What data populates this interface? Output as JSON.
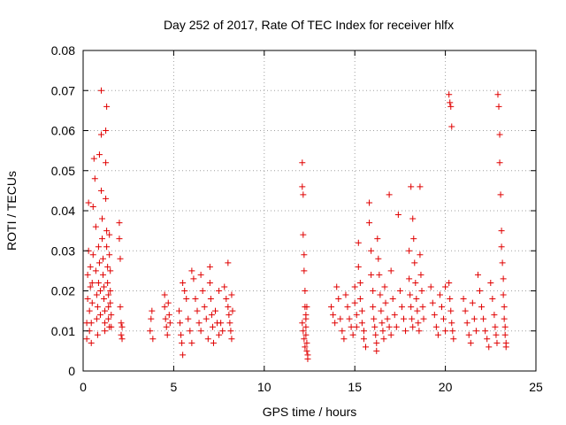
{
  "chart_data": {
    "type": "scatter",
    "title": "Day 252 of 2017, Rate Of TEC Index for receiver hlfx",
    "xlabel": "GPS time / hours",
    "ylabel": "ROTI / TECUs",
    "xlim": [
      0,
      25
    ],
    "ylim": [
      0,
      0.08
    ],
    "xticks": [
      0,
      5,
      10,
      15,
      20,
      25
    ],
    "yticks": [
      0,
      0.01,
      0.02,
      0.03,
      0.04,
      0.05,
      0.06,
      0.07,
      0.08
    ],
    "xtick_labels": [
      "0",
      "5",
      "10",
      "15",
      "20",
      "25"
    ],
    "ytick_labels": [
      "0",
      "0.01",
      "0.02",
      "0.03",
      "0.04",
      "0.05",
      "0.06",
      "0.07",
      "0.08"
    ],
    "grid": true,
    "marker": "plus",
    "color": "#e00000",
    "points": [
      [
        0.2,
        0.008
      ],
      [
        0.2,
        0.012
      ],
      [
        0.25,
        0.018
      ],
      [
        0.25,
        0.024
      ],
      [
        0.3,
        0.03
      ],
      [
        0.3,
        0.042
      ],
      [
        0.35,
        0.01
      ],
      [
        0.35,
        0.015
      ],
      [
        0.4,
        0.021
      ],
      [
        0.4,
        0.026
      ],
      [
        0.45,
        0.007
      ],
      [
        0.45,
        0.012
      ],
      [
        0.5,
        0.017
      ],
      [
        0.5,
        0.022
      ],
      [
        0.55,
        0.041
      ],
      [
        0.55,
        0.029
      ],
      [
        0.6,
        0.053
      ],
      [
        0.65,
        0.048
      ],
      [
        0.7,
        0.036
      ],
      [
        0.7,
        0.025
      ],
      [
        0.75,
        0.019
      ],
      [
        0.75,
        0.013
      ],
      [
        0.8,
        0.009
      ],
      [
        0.8,
        0.016
      ],
      [
        0.85,
        0.022
      ],
      [
        0.85,
        0.031
      ],
      [
        0.9,
        0.054
      ],
      [
        0.9,
        0.027
      ],
      [
        0.95,
        0.014
      ],
      [
        0.95,
        0.02
      ],
      [
        1.0,
        0.07
      ],
      [
        1.0,
        0.059
      ],
      [
        1.0,
        0.045
      ],
      [
        1.05,
        0.038
      ],
      [
        1.05,
        0.033
      ],
      [
        1.1,
        0.028
      ],
      [
        1.1,
        0.024
      ],
      [
        1.15,
        0.021
      ],
      [
        1.15,
        0.018
      ],
      [
        1.2,
        0.015
      ],
      [
        1.2,
        0.012
      ],
      [
        1.2,
        0.01
      ],
      [
        1.25,
        0.06
      ],
      [
        1.25,
        0.052
      ],
      [
        1.25,
        0.043
      ],
      [
        1.3,
        0.066
      ],
      [
        1.3,
        0.035
      ],
      [
        1.3,
        0.031
      ],
      [
        1.35,
        0.026
      ],
      [
        1.35,
        0.022
      ],
      [
        1.4,
        0.019
      ],
      [
        1.4,
        0.016
      ],
      [
        1.4,
        0.013
      ],
      [
        1.45,
        0.011
      ],
      [
        1.45,
        0.029
      ],
      [
        1.45,
        0.034
      ],
      [
        1.5,
        0.025
      ],
      [
        1.5,
        0.02
      ],
      [
        1.5,
        0.017
      ],
      [
        1.55,
        0.014
      ],
      [
        1.55,
        0.011
      ],
      [
        2.0,
        0.037
      ],
      [
        2.0,
        0.033
      ],
      [
        2.05,
        0.028
      ],
      [
        2.05,
        0.016
      ],
      [
        2.1,
        0.012
      ],
      [
        2.1,
        0.009
      ],
      [
        2.15,
        0.008
      ],
      [
        2.15,
        0.011
      ],
      [
        3.7,
        0.01
      ],
      [
        3.75,
        0.013
      ],
      [
        3.8,
        0.015
      ],
      [
        3.85,
        0.008
      ],
      [
        4.5,
        0.019
      ],
      [
        4.5,
        0.016
      ],
      [
        4.55,
        0.013
      ],
      [
        4.6,
        0.011
      ],
      [
        4.65,
        0.009
      ],
      [
        4.7,
        0.017
      ],
      [
        4.75,
        0.014
      ],
      [
        4.8,
        0.012
      ],
      [
        5.3,
        0.015
      ],
      [
        5.35,
        0.012
      ],
      [
        5.4,
        0.009
      ],
      [
        5.45,
        0.007
      ],
      [
        5.5,
        0.004
      ],
      [
        5.5,
        0.022
      ],
      [
        5.6,
        0.02
      ],
      [
        5.7,
        0.018
      ],
      [
        5.8,
        0.013
      ],
      [
        5.9,
        0.01
      ],
      [
        6.0,
        0.025
      ],
      [
        6.0,
        0.007
      ],
      [
        6.1,
        0.023
      ],
      [
        6.2,
        0.018
      ],
      [
        6.3,
        0.015
      ],
      [
        6.4,
        0.012
      ],
      [
        6.5,
        0.01
      ],
      [
        6.5,
        0.024
      ],
      [
        6.6,
        0.02
      ],
      [
        6.7,
        0.016
      ],
      [
        6.8,
        0.013
      ],
      [
        6.9,
        0.008
      ],
      [
        7.0,
        0.026
      ],
      [
        7.0,
        0.022
      ],
      [
        7.05,
        0.018
      ],
      [
        7.1,
        0.014
      ],
      [
        7.15,
        0.011
      ],
      [
        7.2,
        0.007
      ],
      [
        7.3,
        0.015
      ],
      [
        7.4,
        0.012
      ],
      [
        7.5,
        0.02
      ],
      [
        7.5,
        0.009
      ],
      [
        7.6,
        0.012
      ],
      [
        7.7,
        0.01
      ],
      [
        7.8,
        0.021
      ],
      [
        7.9,
        0.018
      ],
      [
        8.0,
        0.027
      ],
      [
        8.0,
        0.016
      ],
      [
        8.05,
        0.014
      ],
      [
        8.1,
        0.012
      ],
      [
        8.15,
        0.01
      ],
      [
        8.2,
        0.008
      ],
      [
        8.2,
        0.019
      ],
      [
        8.25,
        0.015
      ],
      [
        12.1,
        0.052
      ],
      [
        12.1,
        0.046
      ],
      [
        12.15,
        0.044
      ],
      [
        12.15,
        0.034
      ],
      [
        12.2,
        0.029
      ],
      [
        12.2,
        0.025
      ],
      [
        12.25,
        0.02
      ],
      [
        12.25,
        0.016
      ],
      [
        12.3,
        0.013
      ],
      [
        12.3,
        0.011
      ],
      [
        12.3,
        0.009
      ],
      [
        12.35,
        0.007
      ],
      [
        12.35,
        0.005
      ],
      [
        12.4,
        0.004
      ],
      [
        12.4,
        0.003
      ],
      [
        12.1,
        0.012
      ],
      [
        12.15,
        0.01
      ],
      [
        12.2,
        0.008
      ],
      [
        12.25,
        0.006
      ],
      [
        12.3,
        0.014
      ],
      [
        12.35,
        0.016
      ],
      [
        13.7,
        0.016
      ],
      [
        13.8,
        0.014
      ],
      [
        13.9,
        0.012
      ],
      [
        14.0,
        0.021
      ],
      [
        14.1,
        0.018
      ],
      [
        14.2,
        0.013
      ],
      [
        14.3,
        0.01
      ],
      [
        14.4,
        0.008
      ],
      [
        14.5,
        0.019
      ],
      [
        14.6,
        0.016
      ],
      [
        14.7,
        0.013
      ],
      [
        14.8,
        0.011
      ],
      [
        14.9,
        0.009
      ],
      [
        15.0,
        0.021
      ],
      [
        15.0,
        0.017
      ],
      [
        15.1,
        0.014
      ],
      [
        15.1,
        0.011
      ],
      [
        15.2,
        0.026
      ],
      [
        15.2,
        0.032
      ],
      [
        15.3,
        0.022
      ],
      [
        15.3,
        0.018
      ],
      [
        15.4,
        0.015
      ],
      [
        15.4,
        0.012
      ],
      [
        15.5,
        0.01
      ],
      [
        15.5,
        0.008
      ],
      [
        15.6,
        0.006
      ],
      [
        15.8,
        0.042
      ],
      [
        15.8,
        0.037
      ],
      [
        15.9,
        0.03
      ],
      [
        15.9,
        0.024
      ],
      [
        16.0,
        0.02
      ],
      [
        16.0,
        0.016
      ],
      [
        16.05,
        0.013
      ],
      [
        16.1,
        0.011
      ],
      [
        16.15,
        0.009
      ],
      [
        16.2,
        0.007
      ],
      [
        16.2,
        0.005
      ],
      [
        16.25,
        0.033
      ],
      [
        16.3,
        0.028
      ],
      [
        16.35,
        0.024
      ],
      [
        16.4,
        0.019
      ],
      [
        16.45,
        0.015
      ],
      [
        16.5,
        0.012
      ],
      [
        16.55,
        0.01
      ],
      [
        16.6,
        0.008
      ],
      [
        16.65,
        0.021
      ],
      [
        16.7,
        0.017
      ],
      [
        16.8,
        0.013
      ],
      [
        16.9,
        0.044
      ],
      [
        16.9,
        0.011
      ],
      [
        17.0,
        0.025
      ],
      [
        17.0,
        0.009
      ],
      [
        17.1,
        0.018
      ],
      [
        17.2,
        0.014
      ],
      [
        17.3,
        0.011
      ],
      [
        17.4,
        0.039
      ],
      [
        17.5,
        0.02
      ],
      [
        17.6,
        0.016
      ],
      [
        17.7,
        0.013
      ],
      [
        17.8,
        0.01
      ],
      [
        18.0,
        0.03
      ],
      [
        18.0,
        0.023
      ],
      [
        18.05,
        0.019
      ],
      [
        18.1,
        0.046
      ],
      [
        18.1,
        0.016
      ],
      [
        18.15,
        0.013
      ],
      [
        18.2,
        0.038
      ],
      [
        18.2,
        0.011
      ],
      [
        18.25,
        0.033
      ],
      [
        18.3,
        0.027
      ],
      [
        18.35,
        0.022
      ],
      [
        18.4,
        0.018
      ],
      [
        18.45,
        0.015
      ],
      [
        18.5,
        0.012
      ],
      [
        18.55,
        0.01
      ],
      [
        18.6,
        0.046
      ],
      [
        18.6,
        0.029
      ],
      [
        18.65,
        0.024
      ],
      [
        18.7,
        0.02
      ],
      [
        18.75,
        0.016
      ],
      [
        18.8,
        0.013
      ],
      [
        19.2,
        0.021
      ],
      [
        19.3,
        0.017
      ],
      [
        19.4,
        0.014
      ],
      [
        19.5,
        0.011
      ],
      [
        19.6,
        0.009
      ],
      [
        19.7,
        0.019
      ],
      [
        19.8,
        0.016
      ],
      [
        19.9,
        0.013
      ],
      [
        20.0,
        0.021
      ],
      [
        20.0,
        0.01
      ],
      [
        20.2,
        0.069
      ],
      [
        20.25,
        0.067
      ],
      [
        20.3,
        0.066
      ],
      [
        20.35,
        0.061
      ],
      [
        20.25,
        0.018
      ],
      [
        20.3,
        0.015
      ],
      [
        20.35,
        0.012
      ],
      [
        20.4,
        0.01
      ],
      [
        20.45,
        0.008
      ],
      [
        20.2,
        0.022
      ],
      [
        21.0,
        0.018
      ],
      [
        21.1,
        0.015
      ],
      [
        21.2,
        0.012
      ],
      [
        21.3,
        0.009
      ],
      [
        21.4,
        0.007
      ],
      [
        21.5,
        0.017
      ],
      [
        21.6,
        0.013
      ],
      [
        21.7,
        0.01
      ],
      [
        21.8,
        0.024
      ],
      [
        21.9,
        0.02
      ],
      [
        22.0,
        0.016
      ],
      [
        22.1,
        0.013
      ],
      [
        22.2,
        0.01
      ],
      [
        22.3,
        0.008
      ],
      [
        22.4,
        0.006
      ],
      [
        22.5,
        0.022
      ],
      [
        22.6,
        0.018
      ],
      [
        22.7,
        0.014
      ],
      [
        22.75,
        0.011
      ],
      [
        22.8,
        0.009
      ],
      [
        22.85,
        0.007
      ],
      [
        22.9,
        0.069
      ],
      [
        22.95,
        0.066
      ],
      [
        23.0,
        0.059
      ],
      [
        23.0,
        0.052
      ],
      [
        23.05,
        0.044
      ],
      [
        23.1,
        0.035
      ],
      [
        23.1,
        0.031
      ],
      [
        23.15,
        0.027
      ],
      [
        23.2,
        0.023
      ],
      [
        23.2,
        0.019
      ],
      [
        23.25,
        0.016
      ],
      [
        23.25,
        0.013
      ],
      [
        23.3,
        0.011
      ],
      [
        23.3,
        0.009
      ],
      [
        23.35,
        0.007
      ],
      [
        23.35,
        0.006
      ]
    ]
  }
}
